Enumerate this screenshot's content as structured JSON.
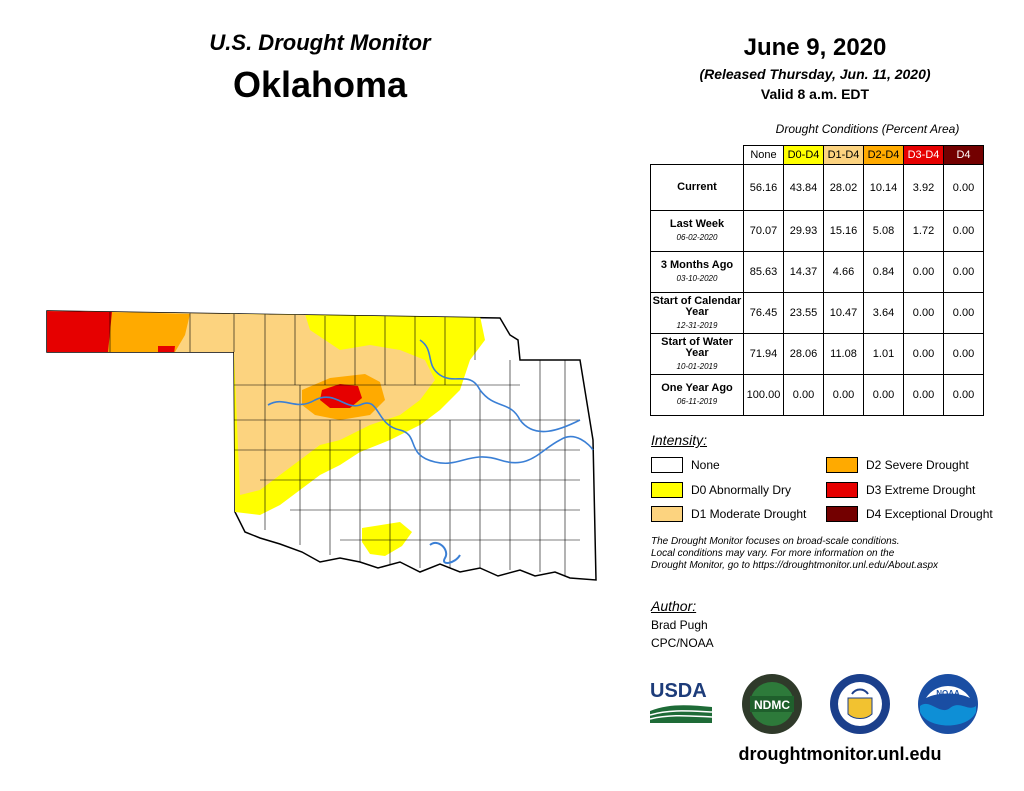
{
  "header": {
    "monitor_title": "U.S. Drought Monitor",
    "state": "Oklahoma",
    "date": "June 9, 2020",
    "released": "(Released Thursday, Jun. 11, 2020)",
    "valid": "Valid 8 a.m. EDT"
  },
  "table": {
    "caption": "Drought Conditions (Percent Area)",
    "columns": [
      {
        "label": "None",
        "color": "#ffffff"
      },
      {
        "label": "D0-D4",
        "color": "#ffff00"
      },
      {
        "label": "D1-D4",
        "color": "#fcd37f"
      },
      {
        "label": "D2-D4",
        "color": "#ffaa00"
      },
      {
        "label": "D3-D4",
        "color": "#e60000"
      },
      {
        "label": "D4",
        "color": "#730000"
      }
    ],
    "rows": [
      {
        "label": "Current",
        "sub": "",
        "values": [
          "56.16",
          "43.84",
          "28.02",
          "10.14",
          "3.92",
          "0.00"
        ]
      },
      {
        "label": "Last Week",
        "sub": "06-02-2020",
        "values": [
          "70.07",
          "29.93",
          "15.16",
          "5.08",
          "1.72",
          "0.00"
        ]
      },
      {
        "label": "3 Months Ago",
        "sub": "03-10-2020",
        "values": [
          "85.63",
          "14.37",
          "4.66",
          "0.84",
          "0.00",
          "0.00"
        ]
      },
      {
        "label": "Start of Calendar Year",
        "sub": "12-31-2019",
        "values": [
          "76.45",
          "23.55",
          "10.47",
          "3.64",
          "0.00",
          "0.00"
        ]
      },
      {
        "label": "Start of Water Year",
        "sub": "10-01-2019",
        "values": [
          "71.94",
          "28.06",
          "11.08",
          "1.01",
          "0.00",
          "0.00"
        ]
      },
      {
        "label": "One Year Ago",
        "sub": "06-11-2019",
        "values": [
          "100.00",
          "0.00",
          "0.00",
          "0.00",
          "0.00",
          "0.00"
        ]
      }
    ]
  },
  "legend": {
    "title": "Intensity:",
    "items": [
      {
        "label": "None",
        "color": "#ffffff"
      },
      {
        "label": "D0 Abnormally Dry",
        "color": "#ffff00"
      },
      {
        "label": "D1 Moderate Drought",
        "color": "#fcd37f"
      },
      {
        "label": "D2 Severe Drought",
        "color": "#ffaa00"
      },
      {
        "label": "D3 Extreme Drought",
        "color": "#e60000"
      },
      {
        "label": "D4 Exceptional Drought",
        "color": "#730000"
      }
    ]
  },
  "note": {
    "line1": "The Drought Monitor focuses on broad-scale conditions.",
    "line2": "Local conditions may vary. For more information on the",
    "line3": "Drought Monitor, go to https://droughtmonitor.unl.edu/About.aspx"
  },
  "author": {
    "title": "Author:",
    "name": "Brad Pugh",
    "org": "CPC/NOAA"
  },
  "logos": {
    "usda": "USDA",
    "ndmc": "NDMC",
    "noaa": "NOAA"
  },
  "website": "droughtmonitor.unl.edu",
  "colors": {
    "river": "#3a7fd5",
    "county_line": "#000000"
  }
}
